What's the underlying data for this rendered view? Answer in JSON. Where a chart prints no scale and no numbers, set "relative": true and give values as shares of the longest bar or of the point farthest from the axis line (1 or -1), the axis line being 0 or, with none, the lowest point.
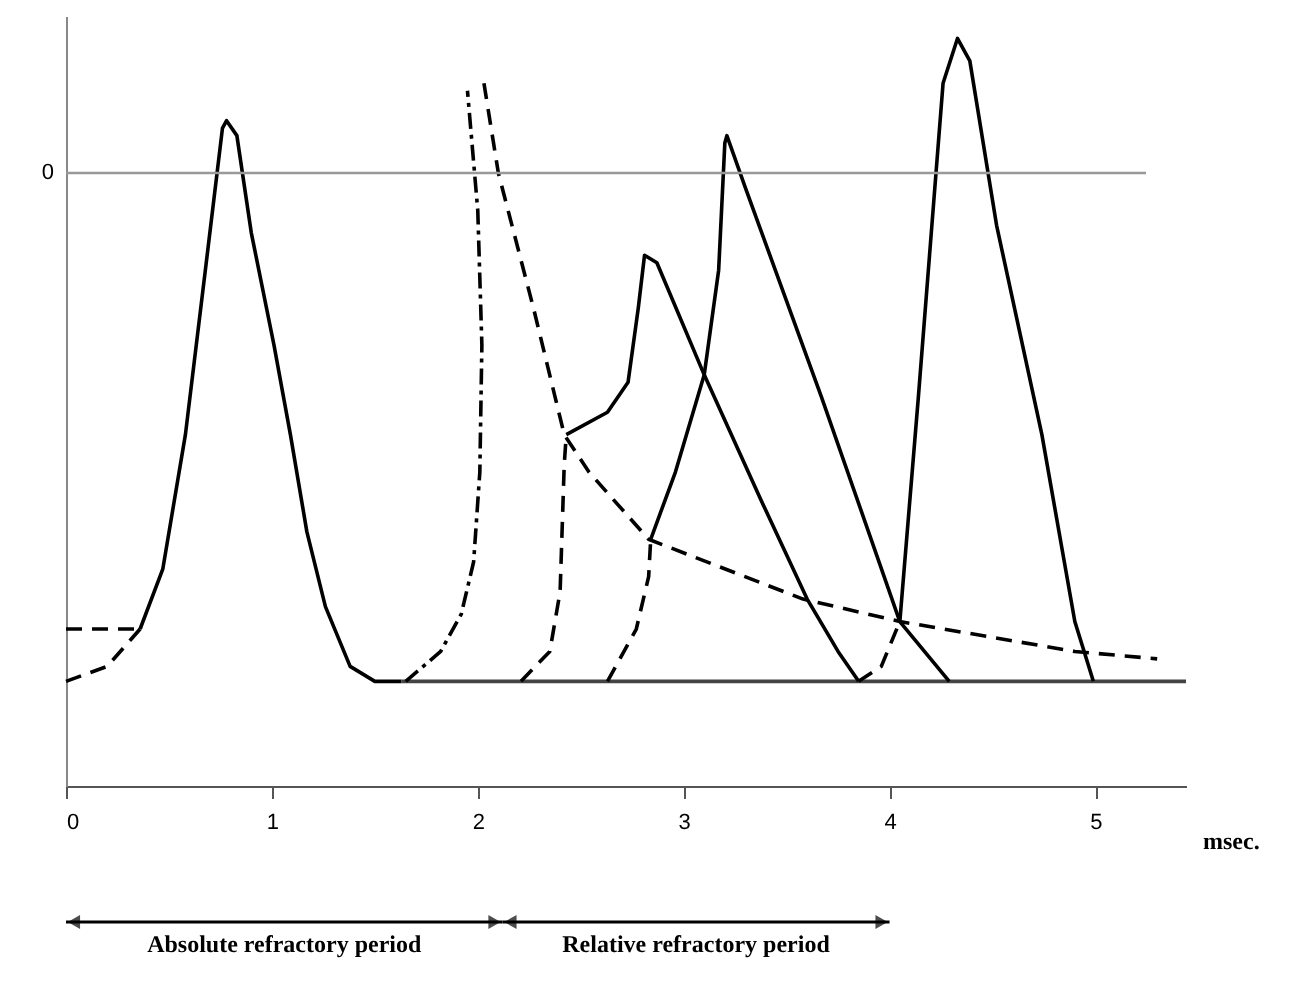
{
  "chart_data": {
    "type": "line",
    "relative": true,
    "xlabel": "msec.",
    "xlim": [
      0,
      5.44
    ],
    "xticks": [
      0,
      1,
      2,
      3,
      4,
      5
    ],
    "grid": false,
    "marker": "none",
    "ref_lines": [
      {
        "axis": "y",
        "value": 0.82,
        "color": "#999999"
      }
    ],
    "annotations": [
      "Absolute refractory period",
      "Relative refractory period",
      "0"
    ],
    "series": [
      {
        "color": "#000000",
        "line_style": "dashed",
        "x": [
          0,
          0.36
        ],
        "values": [
          0.21,
          0.21
        ]
      },
      {
        "color": "#000000",
        "line_style": "dashed",
        "x": [
          0,
          0.2,
          0.36
        ],
        "values": [
          0.14,
          0.16,
          0.21
        ]
      },
      {
        "color": "#000000",
        "line_style": "solid",
        "x": [
          0.36,
          0.47,
          0.58,
          0.69,
          0.76,
          0.78,
          0.83,
          0.9,
          1.01,
          1.09,
          1.17,
          1.26,
          1.38,
          1.5,
          1.63
        ],
        "values": [
          0.21,
          0.29,
          0.47,
          0.72,
          0.88,
          0.89,
          0.87,
          0.74,
          0.59,
          0.47,
          0.34,
          0.24,
          0.16,
          0.14,
          0.14
        ]
      },
      {
        "color": "#444444",
        "line_style": "solid",
        "x": [
          1.63,
          5.44
        ],
        "values": [
          0.14,
          0.14
        ]
      },
      {
        "color": "#000000",
        "line_style": "dotted",
        "x": [
          1.65,
          1.82,
          1.92,
          1.98,
          2.01,
          2.02,
          2.0,
          1.95
        ],
        "values": [
          0.14,
          0.18,
          0.23,
          0.3,
          0.42,
          0.59,
          0.77,
          0.93
        ]
      },
      {
        "color": "#000000",
        "line_style": "dashed",
        "x": [
          2.03,
          2.1,
          2.27,
          2.42,
          2.54,
          2.83,
          3.58,
          4.05,
          4.9,
          5.3
        ],
        "values": [
          0.94,
          0.82,
          0.64,
          0.47,
          0.42,
          0.33,
          0.25,
          0.22,
          0.18,
          0.17
        ]
      },
      {
        "color": "#000000",
        "line_style": "dashed",
        "x": [
          2.21,
          2.35,
          2.4,
          2.42,
          2.43
        ],
        "values": [
          0.14,
          0.18,
          0.26,
          0.43,
          0.47
        ]
      },
      {
        "color": "#000000",
        "line_style": "solid",
        "x": [
          2.43,
          2.63,
          2.73,
          2.78,
          2.81,
          2.87,
          3.1,
          3.38,
          3.6,
          3.75,
          3.85
        ],
        "values": [
          0.47,
          0.5,
          0.54,
          0.64,
          0.71,
          0.7,
          0.55,
          0.38,
          0.25,
          0.18,
          0.14
        ]
      },
      {
        "color": "#000000",
        "line_style": "dashed",
        "x": [
          2.63,
          2.77,
          2.83,
          2.84
        ],
        "values": [
          0.14,
          0.21,
          0.28,
          0.33
        ]
      },
      {
        "color": "#000000",
        "line_style": "solid",
        "x": [
          2.84,
          2.96,
          3.1,
          3.17,
          3.2,
          3.21,
          3.3,
          3.67,
          4.05,
          4.29
        ],
        "values": [
          0.33,
          0.42,
          0.55,
          0.69,
          0.86,
          0.87,
          0.8,
          0.52,
          0.22,
          0.14
        ]
      },
      {
        "color": "#000000",
        "line_style": "dashed",
        "x": [
          3.85,
          3.96,
          4.05
        ],
        "values": [
          0.14,
          0.16,
          0.22
        ]
      },
      {
        "color": "#000000",
        "line_style": "solid",
        "x": [
          4.05,
          4.14,
          4.26,
          4.33,
          4.39,
          4.52,
          4.74,
          4.9,
          4.99
        ],
        "values": [
          0.22,
          0.52,
          0.94,
          1.0,
          0.97,
          0.75,
          0.47,
          0.22,
          0.14
        ]
      }
    ]
  }
}
